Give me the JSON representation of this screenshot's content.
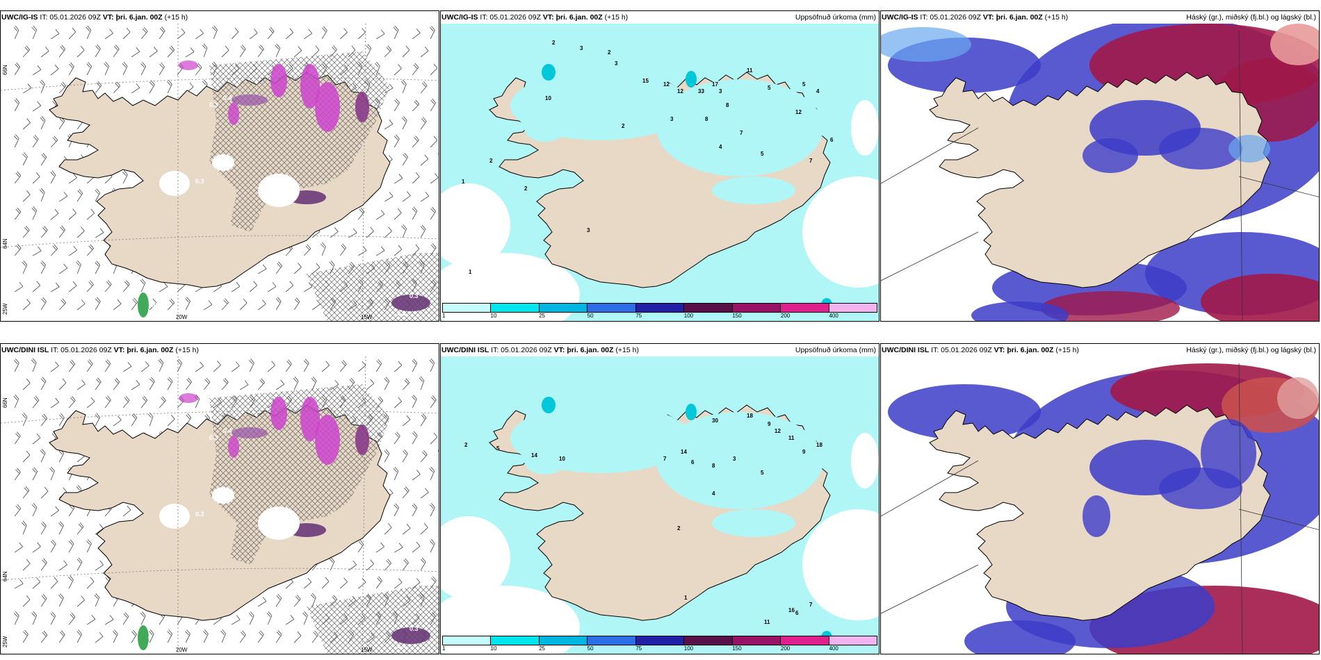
{
  "panels": [
    {
      "id": "p1",
      "model": "UWC/IG-IS",
      "it_label": "IT:",
      "it_value": "05.01.2026 09Z",
      "vt_label": "VT:",
      "vt_value": "þri. 6.jan. 00Z",
      "lead": "(+15 h)",
      "right_title": ""
    },
    {
      "id": "p2",
      "model": "UWC/IG-IS",
      "it_label": "IT:",
      "it_value": "05.01.2026 09Z",
      "vt_label": "VT:",
      "vt_value": "þri. 6.jan. 00Z",
      "lead": "(+15 h)",
      "right_title": "Uppsöfnuð úrkoma (mm)"
    },
    {
      "id": "p3",
      "model": "UWC/IG-IS",
      "it_label": "IT:",
      "it_value": "05.01.2026 09Z",
      "vt_label": "VT:",
      "vt_value": "þri. 6.jan. 00Z",
      "lead": "(+15 h)",
      "right_title": "Háský (gr.), miðský (fj.bl.) og lágský (bl.)"
    },
    {
      "id": "p4",
      "model": "UWC/DINI ISL",
      "it_label": "IT:",
      "it_value": "05.01.2026 09Z",
      "vt_label": "VT:",
      "vt_value": "þri. 6.jan. 00Z",
      "lead": "(+15 h)",
      "right_title": ""
    },
    {
      "id": "p5",
      "model": "UWC/DINI ISL",
      "it_label": "IT:",
      "it_value": "05.01.2026 09Z",
      "vt_label": "VT:",
      "vt_value": "þri. 6.jan. 00Z",
      "lead": "(+15 h)",
      "right_title": "Uppsöfnuð úrkoma (mm)"
    },
    {
      "id": "p6",
      "model": "UWC/DINI ISL",
      "it_label": "IT:",
      "it_value": "05.01.2026 09Z",
      "vt_label": "VT:",
      "vt_value": "þri. 6.jan. 00Z",
      "lead": "(+15 h)",
      "right_title": "Háský (gr.), miðský (fj.bl.) og lágský (bl.)"
    }
  ],
  "axis_labels": {
    "lat_66": "66N",
    "lat_64": "64N",
    "lon_25": "25W",
    "lon_20": "20W",
    "lon_15": "15W"
  },
  "precip_colorbar": {
    "ticks": [
      "1",
      "10",
      "25",
      "50",
      "75",
      "100",
      "150",
      "200",
      "400"
    ],
    "colors": [
      "#c6fbfb",
      "#00e5ee",
      "#00b5e0",
      "#2d6ee8",
      "#2320a8",
      "#5a0f4a",
      "#9a1268",
      "#e0208c",
      "#f2b4ee"
    ]
  },
  "precip_labels_top": [
    "2",
    "3",
    "2",
    "3",
    "12",
    "17",
    "11",
    "3",
    "1",
    "2",
    "10",
    "12",
    "15",
    "33",
    "8",
    "5",
    "4",
    "12",
    "3",
    "2",
    "7",
    "4",
    "5",
    "6",
    "7",
    "8",
    "2",
    "1",
    "3",
    "5"
  ],
  "precip_labels_bottom": [
    "2",
    "5",
    "14",
    "10",
    "7",
    "14",
    "30",
    "18",
    "9",
    "11",
    "12",
    "6",
    "8",
    "3",
    "9",
    "18",
    "5",
    "4",
    "2",
    "16",
    "11",
    "7",
    "6",
    "1"
  ],
  "snow_labels_top": [
    "0.3",
    "0.4",
    "0.3",
    "1.6",
    "0.3",
    "0.3"
  ],
  "snow_labels_bottom": [
    "0.3",
    "0.4",
    "0.3",
    "0.3",
    "0.3",
    "0.4"
  ],
  "colors": {
    "land": "#e8d8c6",
    "precip": "#b0f6f6",
    "high_cloud": "#a01848",
    "mid_cloud": "#3c3cc8",
    "low_cloud": "#6aa8f0",
    "snow": "#cc44cc"
  }
}
